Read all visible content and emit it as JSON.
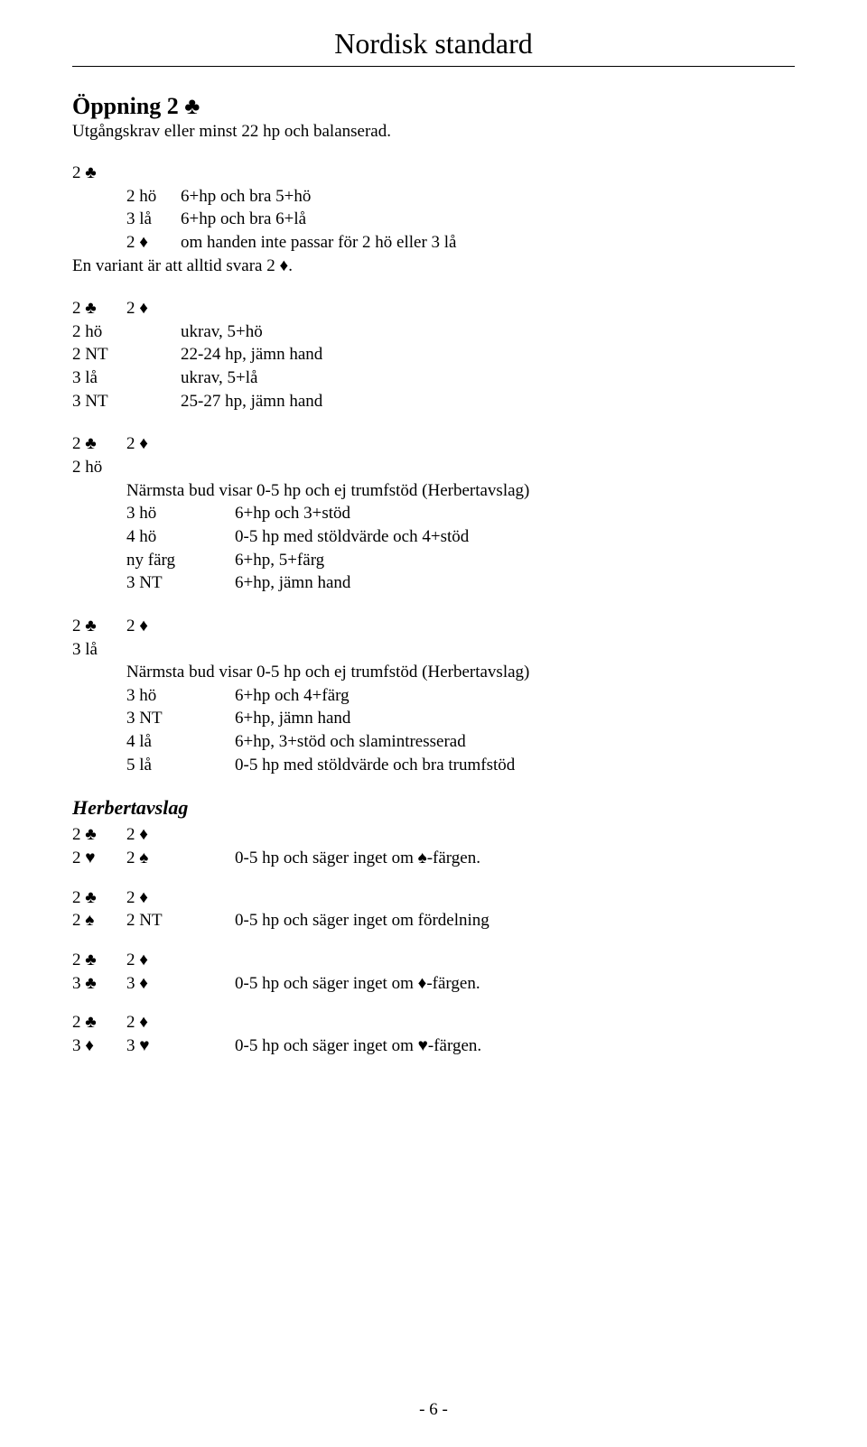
{
  "doc_title": "Nordisk standard",
  "suits": {
    "club": "♣",
    "diamond": "♦",
    "heart": "♥",
    "spade": "♠"
  },
  "opening": {
    "title_prefix": "Öppning 2 ",
    "title_suit": "♣",
    "subtitle": "Utgångskrav eller minst 22 hp och balanserad."
  },
  "blockA": {
    "header": [
      "2 ♣"
    ],
    "rows": [
      {
        "c1": "",
        "c2": "2 hö",
        "rest": "6+hp och bra 5+hö"
      },
      {
        "c1": "",
        "c2": "3 lå",
        "rest": "6+hp och bra 6+lå"
      },
      {
        "c1": "",
        "c2": "2 ♦",
        "rest": "om handen inte passar för 2 hö eller 3 lå"
      }
    ],
    "footer": "En variant är att alltid svara 2 ♦."
  },
  "blockB": {
    "header": [
      "2 ♣",
      "2 ♦"
    ],
    "rows": [
      {
        "c1": "2 hö",
        "rest": "ukrav, 5+hö"
      },
      {
        "c1": "2 NT",
        "rest": "22-24 hp, jämn hand"
      },
      {
        "c1": "3 lå",
        "rest": "ukrav, 5+lå"
      },
      {
        "c1": "3 NT",
        "rest": "25-27 hp, jämn hand"
      }
    ]
  },
  "blockC": {
    "header": [
      "2 ♣",
      "2 ♦"
    ],
    "line2": "2 hö",
    "note": "Närmsta bud visar 0-5 hp och ej trumfstöd (Herbertavslag)",
    "rows": [
      {
        "c1": "3 hö",
        "rest": "6+hp och 3+stöd"
      },
      {
        "c1": "4 hö",
        "rest": "0-5 hp med stöldvärde och 4+stöd"
      },
      {
        "c1": "ny färg",
        "rest": "6+hp, 5+färg"
      },
      {
        "c1": "3 NT",
        "rest": "6+hp, jämn hand"
      }
    ]
  },
  "blockD": {
    "header": [
      "2 ♣",
      "2 ♦"
    ],
    "line2": "3 lå",
    "note": "Närmsta bud visar 0-5 hp och ej trumfstöd (Herbertavslag)",
    "rows": [
      {
        "c1": "3 hö",
        "rest": "6+hp och 4+färg"
      },
      {
        "c1": "3 NT",
        "rest": "6+hp, jämn hand"
      },
      {
        "c1": "4 lå",
        "rest": "6+hp, 3+stöd och slamintresserad"
      },
      {
        "c1": "5 lå",
        "rest": "0-5 hp med stöldvärde och bra trumfstöd"
      }
    ]
  },
  "herbert": {
    "title": "Herbertavslag",
    "groups": [
      {
        "r1": [
          "2 ♣",
          "2 ♦"
        ],
        "r2": [
          "2 ♥",
          "2 ♠"
        ],
        "desc": "0-5 hp och säger inget om ♠-färgen."
      },
      {
        "r1": [
          "2 ♣",
          "2 ♦"
        ],
        "r2": [
          "2 ♠",
          "2 NT"
        ],
        "desc": "0-5 hp och säger inget om fördelning"
      },
      {
        "r1": [
          "2 ♣",
          "2 ♦"
        ],
        "r2": [
          "3 ♣",
          "3 ♦"
        ],
        "desc": "0-5 hp och säger inget om ♦-färgen."
      },
      {
        "r1": [
          "2 ♣",
          "2 ♦"
        ],
        "r2": [
          "3 ♦",
          "3 ♥"
        ],
        "desc": "0-5 hp och säger inget om ♥-färgen."
      }
    ]
  },
  "page_number": "- 6 -"
}
